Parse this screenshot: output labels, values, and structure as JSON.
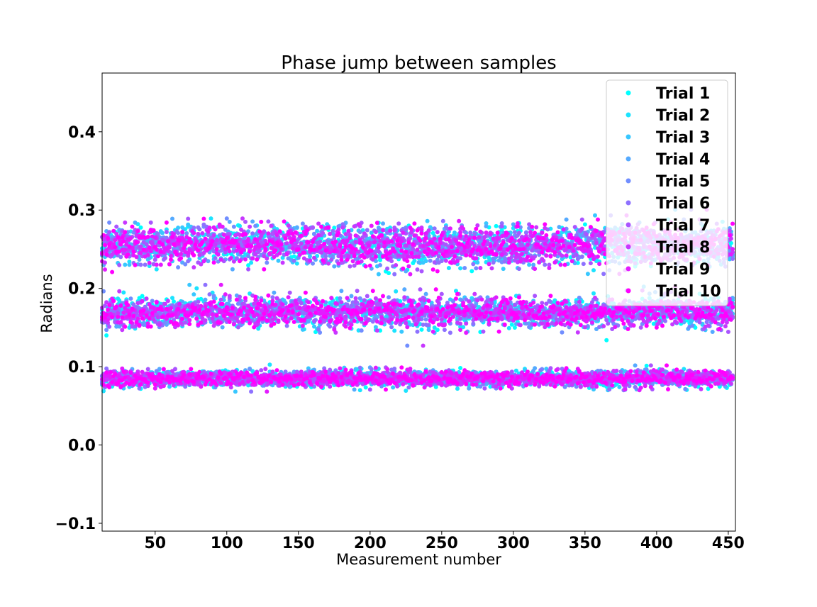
{
  "chart_data": {
    "type": "scatter",
    "title": "Phase jump between samples",
    "xlabel": "Measurement number",
    "ylabel": "Radians",
    "xlim": [
      13,
      455
    ],
    "ylim": [
      -0.11,
      0.475
    ],
    "xticks": [
      50,
      100,
      150,
      200,
      250,
      300,
      350,
      400,
      450
    ],
    "yticks": [
      -0.1,
      0.0,
      0.1,
      0.2,
      0.3,
      0.4
    ],
    "ytick_labels": [
      "−0.1",
      "0.0",
      "0.1",
      "0.2",
      "0.3",
      "0.4"
    ],
    "x_range": [
      13,
      453
    ],
    "bands": [
      {
        "center": 0.085,
        "spread": 0.005
      },
      {
        "center": 0.17,
        "spread": 0.009
      },
      {
        "center": 0.255,
        "spread": 0.012
      }
    ],
    "legend_position": "top-right",
    "grid": false,
    "series": [
      {
        "name": "Trial 1",
        "color": "#00ffff"
      },
      {
        "name": "Trial 2",
        "color": "#1ce3ff"
      },
      {
        "name": "Trial 3",
        "color": "#38c7ff"
      },
      {
        "name": "Trial 4",
        "color": "#55aaff"
      },
      {
        "name": "Trial 5",
        "color": "#718eff"
      },
      {
        "name": "Trial 6",
        "color": "#8e71ff"
      },
      {
        "name": "Trial 7",
        "color": "#aa55ff"
      },
      {
        "name": "Trial 8",
        "color": "#c738ff"
      },
      {
        "name": "Trial 9",
        "color": "#e31cff"
      },
      {
        "name": "Trial 10",
        "color": "#ff00ff"
      }
    ]
  }
}
